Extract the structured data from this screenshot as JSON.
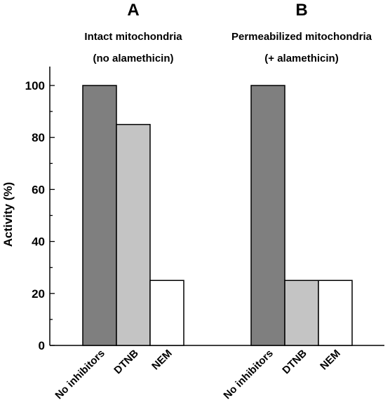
{
  "chart_data": {
    "type": "bar",
    "ylabel": "Activity (%)",
    "ylim": [
      0,
      100
    ],
    "yticks": [
      "0",
      "20",
      "40",
      "60",
      "80",
      "100"
    ],
    "grid": false,
    "legend": "none",
    "panels": [
      {
        "letter": "A",
        "title_line1": "Intact mitochondria",
        "title_line2": "(no alamethicin)",
        "categories": [
          "No inhibitors",
          "DTNB",
          "NEM"
        ],
        "values": [
          100,
          85,
          25
        ]
      },
      {
        "letter": "B",
        "title_line1": "Permeabilized mitochondria",
        "title_line2": "(+ alamethicin)",
        "categories": [
          "No inhibitors",
          "DTNB",
          "NEM"
        ],
        "values": [
          100,
          25,
          25
        ]
      }
    ],
    "bar_colors": [
      "#7f7f7f",
      "#c4c4c4",
      "#ffffff"
    ]
  }
}
